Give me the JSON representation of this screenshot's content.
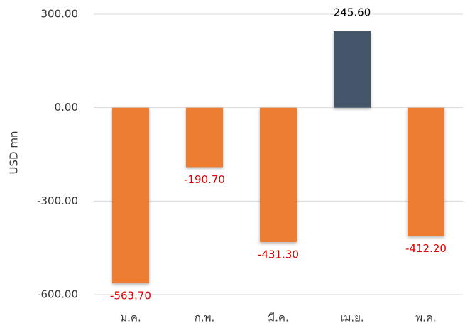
{
  "chart_data": {
    "type": "bar",
    "y_label": "USD mn",
    "categories": [
      "ม.ค.",
      "ก.พ.",
      "มี.ค.",
      "เม.ย.",
      "พ.ค."
    ],
    "values": [
      -563.7,
      -190.7,
      -431.3,
      245.6,
      -412.2
    ],
    "value_labels": [
      "-563.70",
      "-190.70",
      "-431.30",
      "245.60",
      "-412.20"
    ],
    "colors": [
      "#ed7d31",
      "#ed7d31",
      "#ed7d31",
      "#44546a",
      "#ed7d31"
    ],
    "label_colors": [
      "#e00000",
      "#e00000",
      "#e00000",
      "#000000",
      "#e00000"
    ],
    "ylim": [
      -600,
      300
    ],
    "yticks": [
      {
        "value": 300,
        "label": "300.00"
      },
      {
        "value": 0,
        "label": "0.00"
      },
      {
        "value": -300,
        "label": "-300.00"
      },
      {
        "value": -600,
        "label": "-600.00"
      }
    ],
    "grid": true
  }
}
